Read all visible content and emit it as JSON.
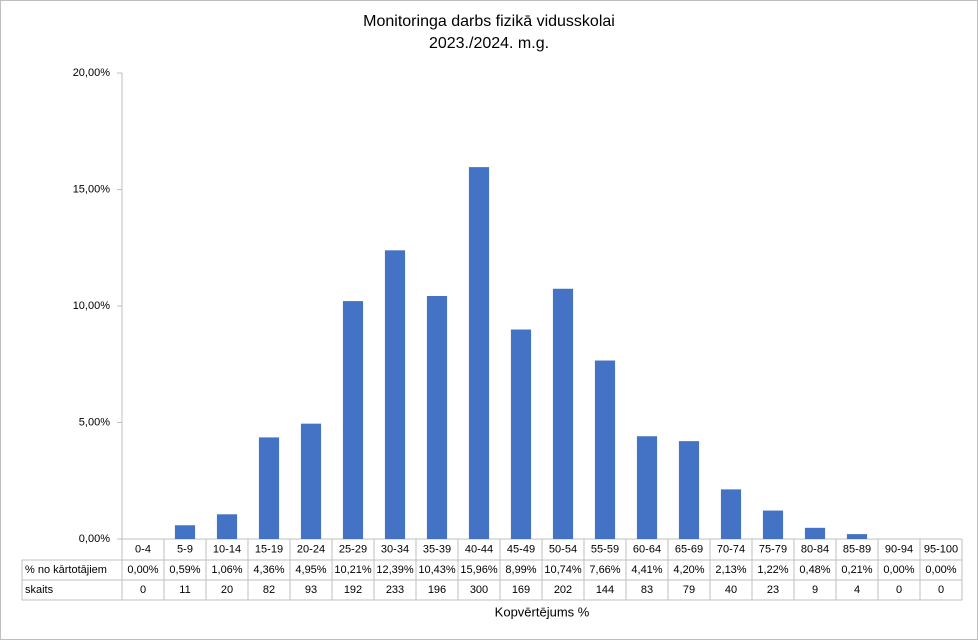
{
  "chart_data": {
    "type": "bar",
    "title": "Monitoringa darbs fizikā vidusskolai",
    "subtitle": "2023./2024. m.g.",
    "x_label": "Kopvērtējums %",
    "categories": [
      "0-4",
      "5-9",
      "10-14",
      "15-19",
      "20-24",
      "25-29",
      "30-34",
      "35-39",
      "40-44",
      "45-49",
      "50-54",
      "55-59",
      "60-64",
      "65-69",
      "70-74",
      "75-79",
      "80-84",
      "85-89",
      "90-94",
      "95-100"
    ],
    "series": [
      {
        "name": "% no kārtotājiem",
        "color": "#4472c4",
        "values": [
          0,
          0.59,
          1.06,
          4.36,
          4.95,
          10.21,
          12.39,
          10.43,
          15.96,
          8.99,
          10.74,
          7.66,
          4.41,
          4.2,
          2.13,
          1.22,
          0.48,
          0.21,
          0,
          0
        ],
        "value_labels": [
          "0,00%",
          "0,59%",
          "1,06%",
          "4,36%",
          "4,95%",
          "10,21%",
          "12,39%",
          "10,43%",
          "15,96%",
          "8,99%",
          "10,74%",
          "7,66%",
          "4,41%",
          "4,20%",
          "2,13%",
          "1,22%",
          "0,48%",
          "0,21%",
          "0,00%",
          "0,00%"
        ]
      }
    ],
    "count_row": {
      "name": "skaits",
      "values": [
        0,
        11,
        20,
        82,
        93,
        192,
        233,
        196,
        300,
        169,
        202,
        144,
        83,
        79,
        40,
        23,
        9,
        4,
        0,
        0
      ]
    },
    "ylim": [
      0,
      20
    ],
    "yticks": [
      {
        "value": 0,
        "label": "0,00%"
      },
      {
        "value": 5,
        "label": "5,00%"
      },
      {
        "value": 10,
        "label": "10,00%"
      },
      {
        "value": 15,
        "label": "15,00%"
      },
      {
        "value": 20,
        "label": "20,00%"
      }
    ],
    "grid": false
  }
}
